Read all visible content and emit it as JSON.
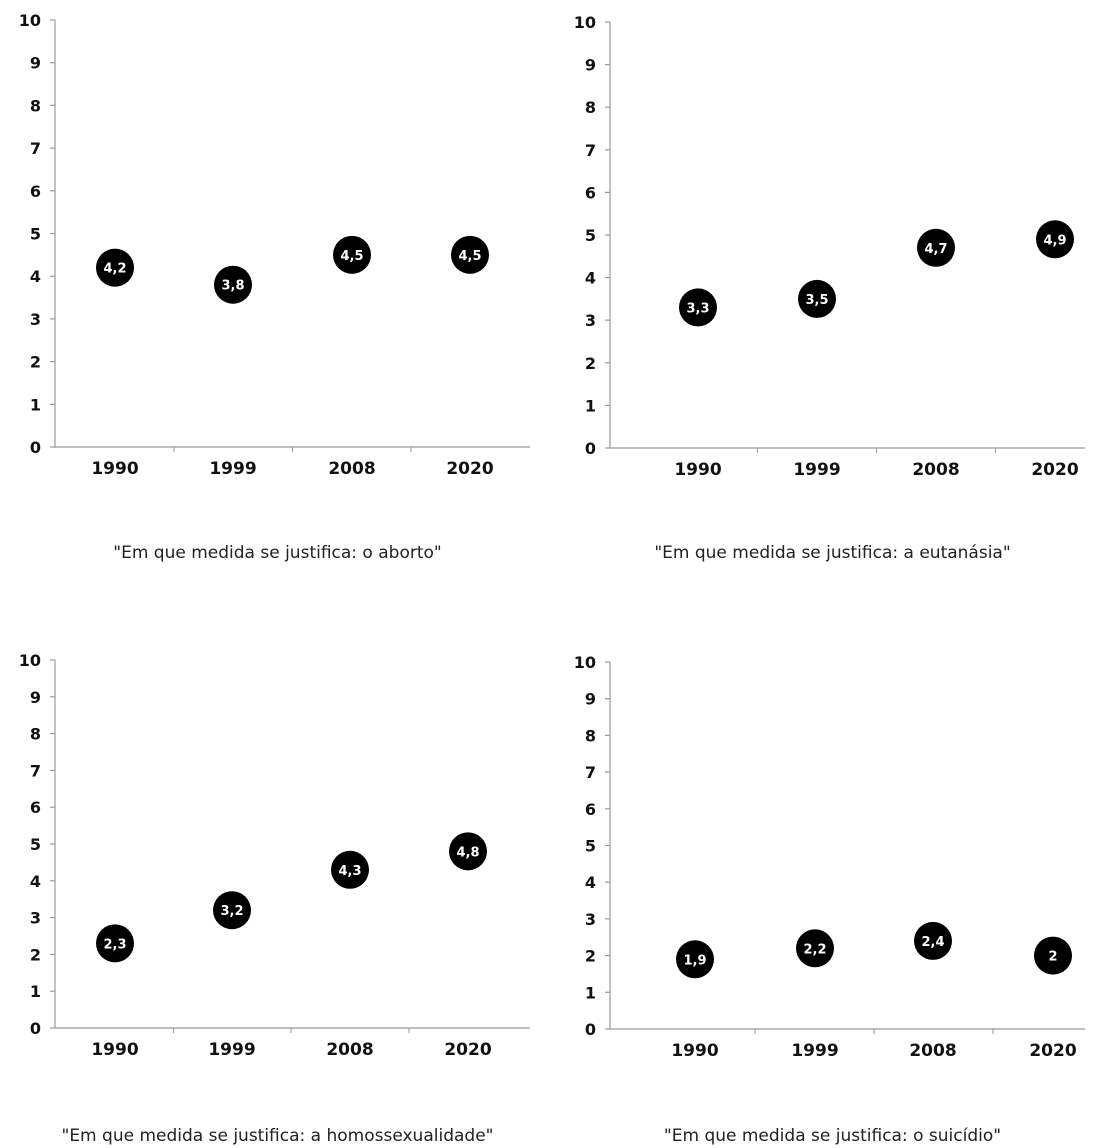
{
  "chart_data": [
    {
      "type": "scatter",
      "caption": "\"Em que medida se justifica: o aborto\"",
      "categories": [
        "1990",
        "1999",
        "2008",
        "2020"
      ],
      "values": [
        4.2,
        3.8,
        4.5,
        4.5
      ],
      "value_labels": [
        "4,2",
        "3,8",
        "4,5",
        "4,5"
      ],
      "ylim": [
        0,
        10
      ],
      "yticks": [
        "0",
        "1",
        "2",
        "3",
        "4",
        "5",
        "6",
        "7",
        "8",
        "9",
        "10"
      ],
      "grid": false
    },
    {
      "type": "scatter",
      "caption": "\"Em que medida se justifica: a eutanásia\"",
      "categories": [
        "1990",
        "1999",
        "2008",
        "2020"
      ],
      "values": [
        3.3,
        3.5,
        4.7,
        4.9
      ],
      "value_labels": [
        "3,3",
        "3,5",
        "4,7",
        "4,9"
      ],
      "ylim": [
        0,
        10
      ],
      "yticks": [
        "0",
        "1",
        "2",
        "3",
        "4",
        "5",
        "6",
        "7",
        "8",
        "9",
        "10"
      ],
      "grid": false
    },
    {
      "type": "scatter",
      "caption": "\"Em que medida se justifica: a homossexualidade\"",
      "categories": [
        "1990",
        "1999",
        "2008",
        "2020"
      ],
      "values": [
        2.3,
        3.2,
        4.3,
        4.8
      ],
      "value_labels": [
        "2,3",
        "3,2",
        "4,3",
        "4,8"
      ],
      "ylim": [
        0,
        10
      ],
      "yticks": [
        "0",
        "1",
        "2",
        "3",
        "4",
        "5",
        "6",
        "7",
        "8",
        "9",
        "10"
      ],
      "grid": false
    },
    {
      "type": "scatter",
      "caption": "\"Em que medida se justifica: o suicídio\"",
      "categories": [
        "1990",
        "1999",
        "2008",
        "2020"
      ],
      "values": [
        1.9,
        2.2,
        2.4,
        2.0
      ],
      "value_labels": [
        "1,9",
        "2,2",
        "2,4",
        "2"
      ],
      "ylim": [
        0,
        10
      ],
      "yticks": [
        "0",
        "1",
        "2",
        "3",
        "4",
        "5",
        "6",
        "7",
        "8",
        "9",
        "10"
      ],
      "grid": false
    }
  ],
  "colors": {
    "marker": "#000000",
    "marker_text": "#ffffff",
    "axis": "#999999"
  }
}
